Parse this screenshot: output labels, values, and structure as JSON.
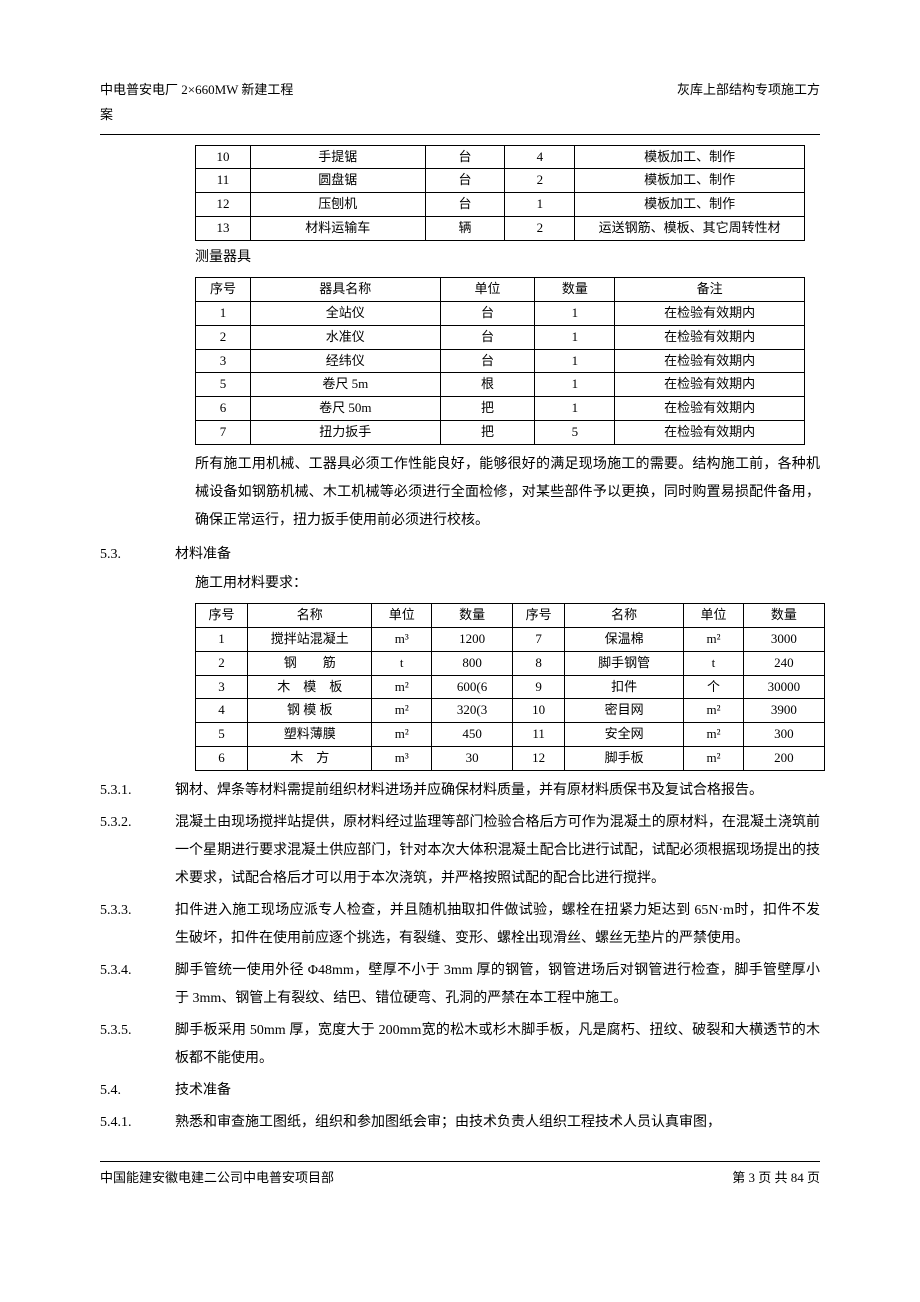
{
  "header": {
    "left": "中电普安电厂 2×660MW 新建工程",
    "right": "灰库上部结构专项施工方",
    "sub": "案"
  },
  "table1": {
    "rows": [
      [
        "10",
        "手提锯",
        "台",
        "4",
        "模板加工、制作"
      ],
      [
        "11",
        "圆盘锯",
        "台",
        "2",
        "模板加工、制作"
      ],
      [
        "12",
        "压刨机",
        "台",
        "1",
        "模板加工、制作"
      ],
      [
        "13",
        "材料运输车",
        "辆",
        "2",
        "运送钢筋、模板、其它周转性材"
      ]
    ]
  },
  "label_measure": "测量器具",
  "table2": {
    "header": [
      "序号",
      "器具名称",
      "单位",
      "数量",
      "备注"
    ],
    "rows": [
      [
        "1",
        "全站仪",
        "台",
        "1",
        "在检验有效期内"
      ],
      [
        "2",
        "水准仪",
        "台",
        "1",
        "在检验有效期内"
      ],
      [
        "3",
        "经纬仪",
        "台",
        "1",
        "在检验有效期内"
      ],
      [
        "5",
        "卷尺 5m",
        "根",
        "1",
        "在检验有效期内"
      ],
      [
        "6",
        "卷尺 50m",
        "把",
        "1",
        "在检验有效期内"
      ],
      [
        "7",
        "扭力扳手",
        "把",
        "5",
        "在检验有效期内"
      ]
    ]
  },
  "para_after_t2": "所有施工用机械、工器具必须工作性能良好，能够很好的满足现场施工的需要。结构施工前，各种机械设备如钢筋机械、木工机械等必须进行全面检修，对某些部件予以更换，同时购置易损配件备用，确保正常运行，扭力扳手使用前必须进行校核。",
  "sec53": {
    "num": "5.3.",
    "title": "材料准备"
  },
  "label_material": "施工用材料要求：",
  "table3": {
    "header": [
      "序号",
      "名称",
      "单位",
      "数量",
      "序号",
      "名称",
      "单位",
      "数量"
    ],
    "rows": [
      [
        "1",
        "搅拌站混凝土",
        "m³",
        "1200",
        "7",
        "保温棉",
        "m²",
        "3000"
      ],
      [
        "2",
        "钢　　筋",
        "t",
        "800",
        "8",
        "脚手钢管",
        "t",
        "240"
      ],
      [
        "3",
        "木　模　板",
        "m²",
        "600(6",
        "9",
        "扣件",
        "个",
        "30000"
      ],
      [
        "4",
        "钢 模 板",
        "m²",
        "320(3",
        "10",
        "密目网",
        "m²",
        "3900"
      ],
      [
        "5",
        "塑料薄膜",
        "m²",
        "450",
        "11",
        "安全网",
        "m²",
        "300"
      ],
      [
        "6",
        "木　方",
        "m³",
        "30",
        "12",
        "脚手板",
        "m²",
        "200"
      ]
    ]
  },
  "items": [
    {
      "num": "5.3.1.",
      "text": "钢材、焊条等材料需提前组织材料进场并应确保材料质量，并有原材料质保书及复试合格报告。"
    },
    {
      "num": "5.3.2.",
      "text": "混凝土由现场搅拌站提供，原材料经过监理等部门检验合格后方可作为混凝土的原材料，在混凝土浇筑前一个星期进行要求混凝土供应部门，针对本次大体积混凝土配合比进行试配，试配必须根据现场提出的技术要求，试配合格后才可以用于本次浇筑，并严格按照试配的配合比进行搅拌。"
    },
    {
      "num": "5.3.3.",
      "text": "扣件进入施工现场应派专人检查，并且随机抽取扣件做试验，螺栓在扭紧力矩达到 65N·m时，扣件不发生破坏，扣件在使用前应逐个挑选，有裂缝、变形、螺栓出现滑丝、螺丝无垫片的严禁使用。"
    },
    {
      "num": "5.3.4.",
      "text": "脚手管统一使用外径 Φ48mm，壁厚不小于 3mm 厚的钢管，钢管进场后对钢管进行检查，脚手管壁厚小于 3mm、钢管上有裂纹、结巴、错位硬弯、孔洞的严禁在本工程中施工。"
    },
    {
      "num": "5.3.5.",
      "text": "脚手板采用 50mm 厚，宽度大于 200mm宽的松木或杉木脚手板，凡是腐朽、扭纹、破裂和大横透节的木板都不能使用。"
    },
    {
      "num": "5.4.",
      "text": "技术准备"
    },
    {
      "num": "5.4.1.",
      "text": "熟悉和审查施工图纸，组织和参加图纸会审；由技术负责人组织工程技术人员认真审图，"
    }
  ],
  "footer": {
    "left": "中国能建安徽电建二公司中电普安项目部",
    "right": "第 3 页 共 84 页"
  }
}
